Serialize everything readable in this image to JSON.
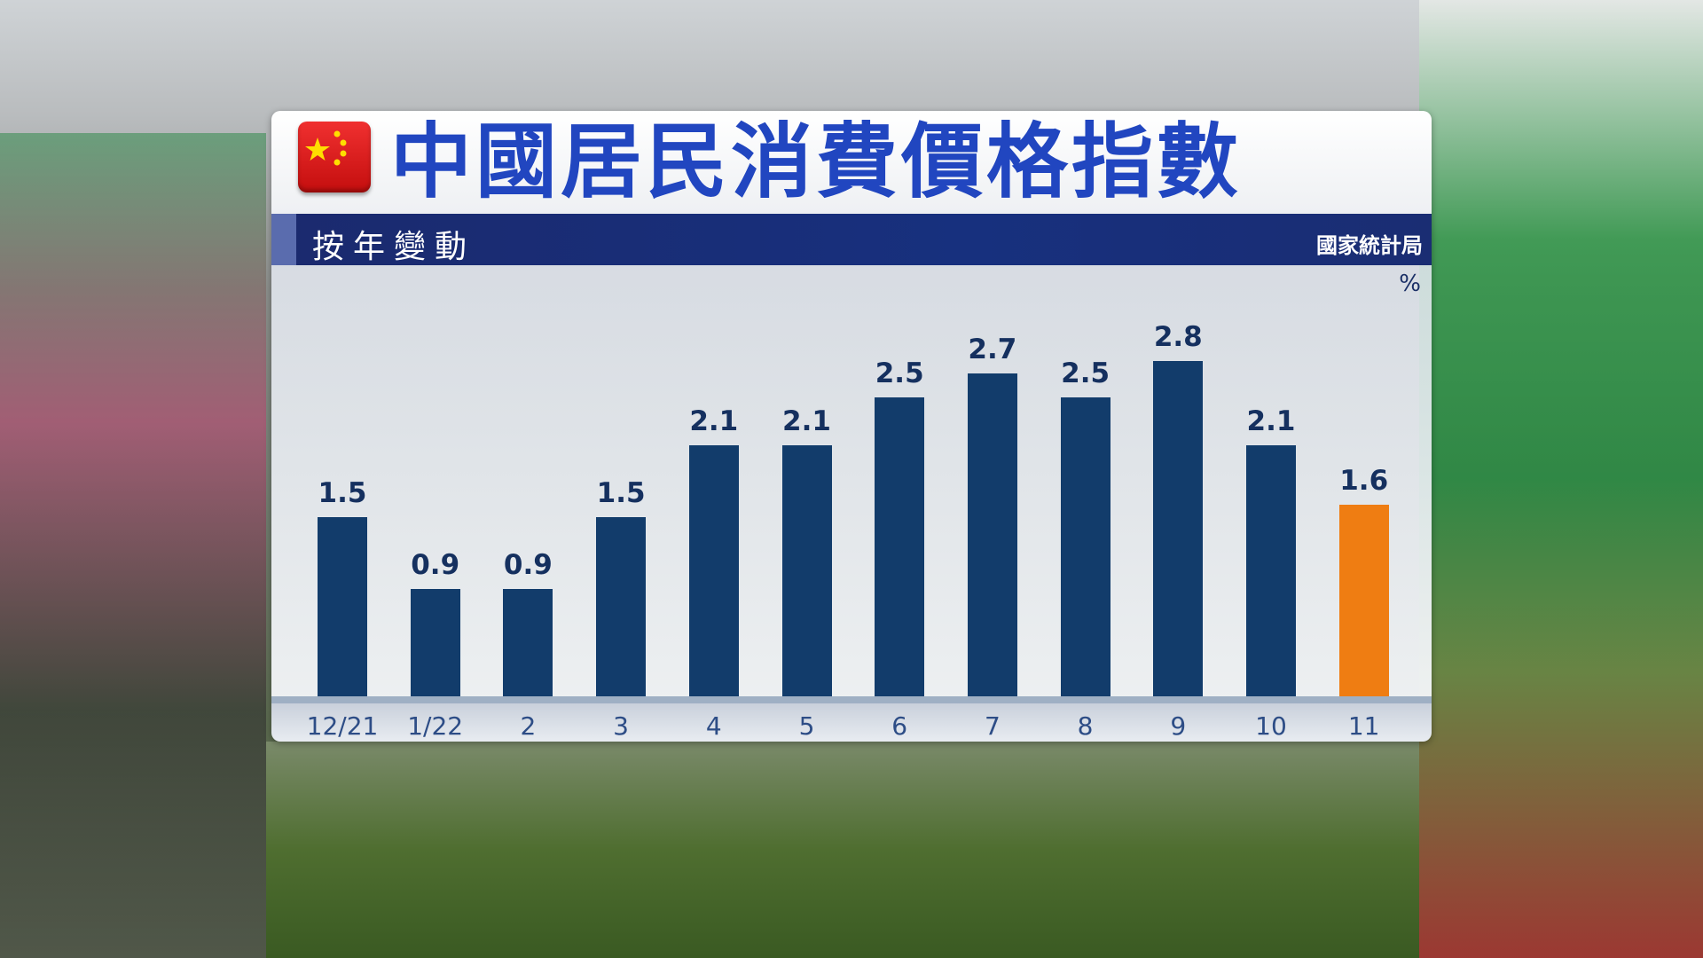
{
  "header": {
    "title": "中國居民消費價格指數",
    "subtitle": "按年變動",
    "source": "國家統計局",
    "flag_icon": "china-flag-icon"
  },
  "chart_data": {
    "type": "bar",
    "title": "中國居民消費價格指數",
    "subtitle": "按年變動",
    "ylabel": "%",
    "categories": [
      "12/21",
      "1/22",
      "2",
      "3",
      "4",
      "5",
      "6",
      "7",
      "8",
      "9",
      "10",
      "11"
    ],
    "values": [
      1.5,
      0.9,
      0.9,
      1.5,
      2.1,
      2.1,
      2.5,
      2.7,
      2.5,
      2.8,
      2.1,
      1.6
    ],
    "labels": [
      "1.5",
      "0.9",
      "0.9",
      "1.5",
      "2.1",
      "2.1",
      "2.5",
      "2.7",
      "2.5",
      "2.8",
      "2.1",
      "1.6"
    ],
    "ylim": [
      0,
      3.5
    ],
    "grid": false,
    "colors": {
      "default": "#123c6b",
      "highlight": "#ef7d12"
    },
    "highlight_index": 11
  }
}
